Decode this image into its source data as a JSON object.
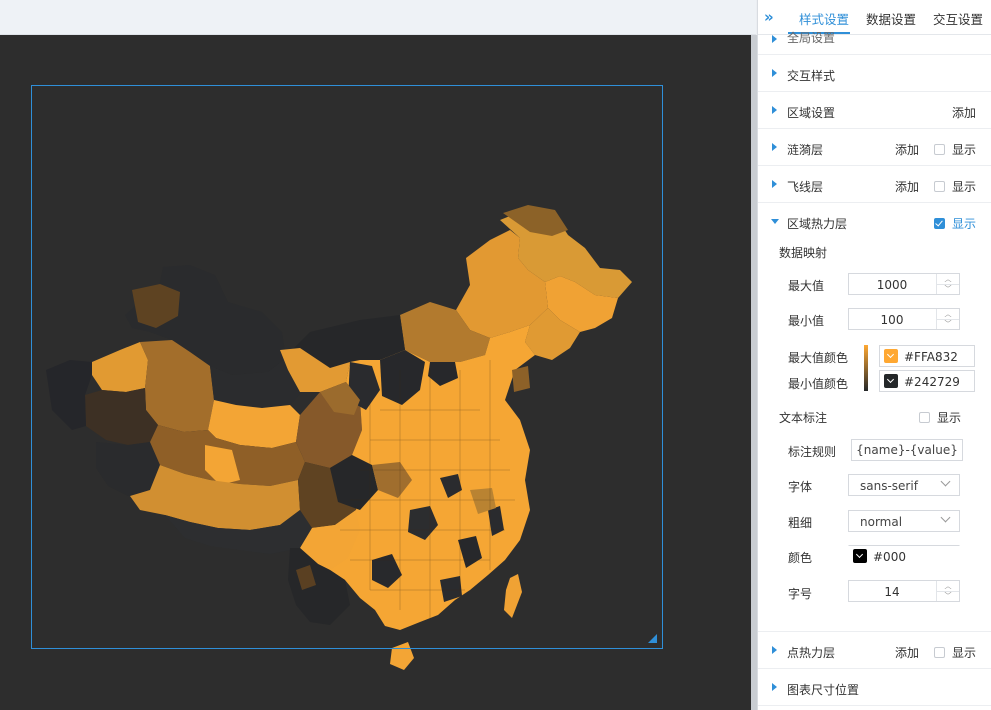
{
  "tabs": [
    {
      "label": "样式设置",
      "active": true
    },
    {
      "label": "数据设置",
      "active": false
    },
    {
      "label": "交互设置",
      "active": false
    }
  ],
  "sections": {
    "global": {
      "title": "全局设置"
    },
    "interaction_style": {
      "title": "交互样式"
    },
    "region_settings": {
      "title": "区域设置",
      "add": "添加"
    },
    "ripple_layer": {
      "title": "涟漪层",
      "add": "添加",
      "show": "显示",
      "checked": false
    },
    "flyline_layer": {
      "title": "飞线层",
      "add": "添加",
      "show": "显示",
      "checked": false
    },
    "region_heat_layer": {
      "title": "区域热力层",
      "show": "显示",
      "checked": true
    },
    "point_heat_layer": {
      "title": "点热力层",
      "add": "添加",
      "show": "显示",
      "checked": false
    },
    "chart_size": {
      "title": "图表尺寸位置"
    }
  },
  "heat": {
    "mapping_title": "数据映射",
    "max_label": "最大值",
    "max_value": "1000",
    "min_label": "最小值",
    "min_value": "100",
    "max_color_label": "最大值颜色",
    "max_color": "#FFA832",
    "min_color_label": "最小值颜色",
    "min_color": "#242729"
  },
  "text_annot": {
    "title": "文本标注",
    "show": "显示",
    "checked": false,
    "rule_label": "标注规则",
    "rule_value": "{name}-{value}",
    "font_label": "字体",
    "font_value": "sans-serif",
    "weight_label": "粗细",
    "weight_value": "normal",
    "color_label": "颜色",
    "color_value": "#000",
    "size_label": "字号",
    "size_value": "14"
  },
  "colors": {
    "accent": "#2f8fd8",
    "canvas_bg": "#2d2d2d",
    "map_high": "#FFA832",
    "map_low": "#242729"
  },
  "icons": {
    "collapse": "double-chevron-right-icon",
    "section_arrow": "triangle-right-icon",
    "resize": "resize-handle-icon"
  }
}
